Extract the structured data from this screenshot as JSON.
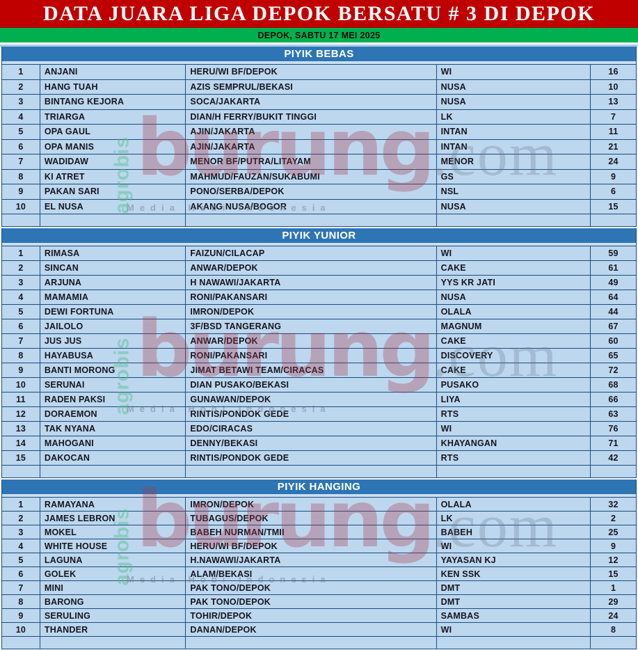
{
  "title": "DATA JUARA LIGA DEPOK BERSATU # 3 DI DEPOK",
  "date_banner": "DEPOK, SABTU 17 MEI 2025",
  "watermark": {
    "side_text": "agrobis",
    "brand": "burung",
    "tld": ".com",
    "tagline": "Media Hobi Indonesia"
  },
  "colors": {
    "title_bg": "#C00000",
    "date_bg": "#00B050",
    "section_bg": "#2E75B6",
    "row_bg": "#BDD7EE",
    "grid": "#1C4B7D"
  },
  "sections": [
    {
      "title": "PIYIK BEBAS",
      "rows": [
        {
          "no": "1",
          "name": "ANJANI",
          "owner": "HERU/WI BF/DEPOK",
          "team": "WI",
          "points": "16"
        },
        {
          "no": "2",
          "name": "HANG TUAH",
          "owner": "AZIS SEMPRUL/BEKASI",
          "team": "NUSA",
          "points": "10"
        },
        {
          "no": "3",
          "name": "BINTANG KEJORA",
          "owner": "SOCA/JAKARTA",
          "team": "NUSA",
          "points": "13"
        },
        {
          "no": "4",
          "name": "TRIARGA",
          "owner": "DIAN/H FERRY/BUKIT TINGGI",
          "team": "LK",
          "points": "7"
        },
        {
          "no": "5",
          "name": "OPA GAUL",
          "owner": "AJIN/JAKARTA",
          "team": "INTAN",
          "points": "11"
        },
        {
          "no": "6",
          "name": "OPA MANIS",
          "owner": "AJIN/JAKARTA",
          "team": "INTAN",
          "points": "21"
        },
        {
          "no": "7",
          "name": "WADIDAW",
          "owner": "MENOR BF/PUTRA/LITAYAM",
          "team": "MENOR",
          "points": "24"
        },
        {
          "no": "8",
          "name": "KI ATRET",
          "owner": "MAHMUD/FAUZAN/SUKABUMI",
          "team": "GS",
          "points": "9"
        },
        {
          "no": "9",
          "name": "PAKAN SARI",
          "owner": "PONO/SERBA/DEPOK",
          "team": "NSL",
          "points": "6"
        },
        {
          "no": "10",
          "name": "EL NUSA",
          "owner": "AKANG NUSA/BOGOR",
          "team": "NUSA",
          "points": "15"
        }
      ]
    },
    {
      "title": "PIYIK YUNIOR",
      "rows": [
        {
          "no": "1",
          "name": "RIMASA",
          "owner": "FAIZUN/CILACAP",
          "team": "WI",
          "points": "59"
        },
        {
          "no": "2",
          "name": "SINCAN",
          "owner": "ANWAR/DEPOK",
          "team": "CAKE",
          "points": "61"
        },
        {
          "no": "3",
          "name": "ARJUNA",
          "owner": "H NAWAWI/JAKARTA",
          "team": "YYS KR JATI",
          "points": "49"
        },
        {
          "no": "4",
          "name": "MAMAMIA",
          "owner": "RONI/PAKANSARI",
          "team": "NUSA",
          "points": "64"
        },
        {
          "no": "5",
          "name": "DEWI FORTUNA",
          "owner": "IMRON/DEPOK",
          "team": "OLALA",
          "points": "44"
        },
        {
          "no": "6",
          "name": "JAILOLO",
          "owner": "3F/BSD TANGERANG",
          "team": "MAGNUM",
          "points": "67"
        },
        {
          "no": "7",
          "name": "JUS JUS",
          "owner": "ANWAR/DEPOK",
          "team": "CAKE",
          "points": "60"
        },
        {
          "no": "8",
          "name": "HAYABUSA",
          "owner": "RONI/PAKANSARI",
          "team": "DISCOVERY",
          "points": "65"
        },
        {
          "no": "9",
          "name": "BANTI MORONG",
          "owner": "JIMAT BETAWI TEAM/CIRACAS",
          "team": "CAKE",
          "points": "72"
        },
        {
          "no": "10",
          "name": "SERUNAI",
          "owner": "DIAN PUSAKO/BEKASI",
          "team": "PUSAKO",
          "points": "68"
        },
        {
          "no": "11",
          "name": "RADEN PAKSI",
          "owner": "GUNAWAN/DEPOK",
          "team": "LIYA",
          "points": "66"
        },
        {
          "no": "12",
          "name": "DORAEMON",
          "owner": "RINTIS/PONDOK GEDE",
          "team": "RTS",
          "points": "63"
        },
        {
          "no": "13",
          "name": "TAK NYANA",
          "owner": "EDO/CIRACAS",
          "team": "WI",
          "points": "76"
        },
        {
          "no": "14",
          "name": "MAHOGANI",
          "owner": "DENNY/BEKASI",
          "team": "KHAYANGAN",
          "points": "71"
        },
        {
          "no": "15",
          "name": "DAKOCAN",
          "owner": "RINTIS/PONDOK GEDE",
          "team": "RTS",
          "points": "42"
        }
      ]
    },
    {
      "title": "PIYIK HANGING",
      "rows": [
        {
          "no": "1",
          "name": "RAMAYANA",
          "owner": "IMRON/DEPOK",
          "team": "OLALA",
          "points": "32"
        },
        {
          "no": "2",
          "name": "JAMES LEBRON",
          "owner": "TUBAGUS/DEPOK",
          "team": "LK",
          "points": "2"
        },
        {
          "no": "3",
          "name": "MOKEL",
          "owner": "BABEH NURMAN/TMII",
          "team": "BABEH",
          "points": "25"
        },
        {
          "no": "4",
          "name": "WHITE HOUSE",
          "owner": "HERU/WI BF/DEPOK",
          "team": "WI",
          "points": "9"
        },
        {
          "no": "5",
          "name": "LAGUNA",
          "owner": "H.NAWAWI/JAKARTA",
          "team": "YAYASAN KJ",
          "points": "12"
        },
        {
          "no": "6",
          "name": "GOLEK",
          "owner": "ALAM/BEKASI",
          "team": "KEN SSK",
          "points": "15"
        },
        {
          "no": "7",
          "name": "MINI",
          "owner": "PAK TONO/DEPOK",
          "team": "DMT",
          "points": "1"
        },
        {
          "no": "8",
          "name": "BARONG",
          "owner": "PAK TONO/DEPOK",
          "team": "DMT",
          "points": "29"
        },
        {
          "no": "9",
          "name": "SERULING",
          "owner": "TOHIR/DEPOK",
          "team": "SAMBAS",
          "points": "24"
        },
        {
          "no": "10",
          "name": "THANDER",
          "owner": "DANAN/DEPOK",
          "team": "WI",
          "points": "8"
        }
      ]
    }
  ]
}
